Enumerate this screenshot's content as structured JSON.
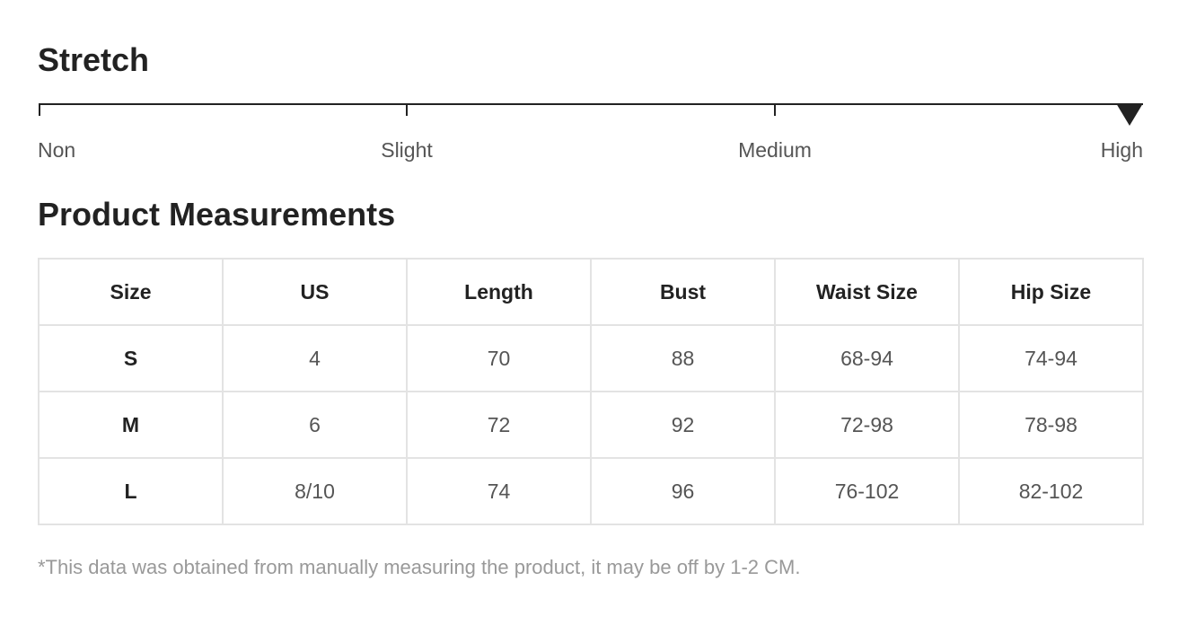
{
  "stretch": {
    "title": "Stretch",
    "levels": [
      "Non",
      "Slight",
      "Medium",
      "High"
    ],
    "selected_level": "High",
    "selected_index": 3
  },
  "measurements": {
    "title": "Product Measurements",
    "headers": [
      "Size",
      "US",
      "Length",
      "Bust",
      "Waist Size",
      "Hip Size"
    ],
    "rows": [
      [
        "S",
        "4",
        "70",
        "88",
        "68-94",
        "74-94"
      ],
      [
        "M",
        "6",
        "72",
        "92",
        "72-98",
        "78-98"
      ],
      [
        "L",
        "8/10",
        "74",
        "96",
        "76-102",
        "82-102"
      ]
    ]
  },
  "footnote": "*This data was obtained from manually measuring the product, it may be off by 1-2 CM.",
  "colors": {
    "text_dark": "#222222",
    "text_muted": "#555555",
    "footnote": "#999999",
    "table_border": "#e3e3e3"
  }
}
